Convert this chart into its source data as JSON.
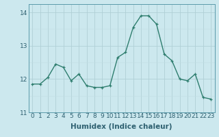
{
  "x": [
    0,
    1,
    2,
    3,
    4,
    5,
    6,
    7,
    8,
    9,
    10,
    11,
    12,
    13,
    14,
    15,
    16,
    17,
    18,
    19,
    20,
    21,
    22,
    23
  ],
  "y": [
    11.85,
    11.85,
    12.05,
    12.45,
    12.35,
    11.95,
    12.15,
    11.8,
    11.75,
    11.75,
    11.8,
    12.65,
    12.8,
    13.55,
    13.9,
    13.9,
    13.65,
    12.75,
    12.55,
    12.0,
    11.95,
    12.15,
    11.45,
    11.4
  ],
  "line_color": "#2e7d6e",
  "marker": "+",
  "marker_size": 4,
  "bg_color": "#cce8ee",
  "grid_color_major": "#b0cfd6",
  "grid_color_minor": "#c0dce2",
  "xlabel": "Humidex (Indice chaleur)",
  "xlim": [
    -0.5,
    23.5
  ],
  "ylim": [
    11.0,
    14.25
  ],
  "yticks": [
    11,
    12,
    13,
    14
  ],
  "xticks": [
    0,
    1,
    2,
    3,
    4,
    5,
    6,
    7,
    8,
    9,
    10,
    11,
    12,
    13,
    14,
    15,
    16,
    17,
    18,
    19,
    20,
    21,
    22,
    23
  ],
  "xlabel_fontsize": 7.5,
  "tick_fontsize": 6.5,
  "line_width": 1.0
}
